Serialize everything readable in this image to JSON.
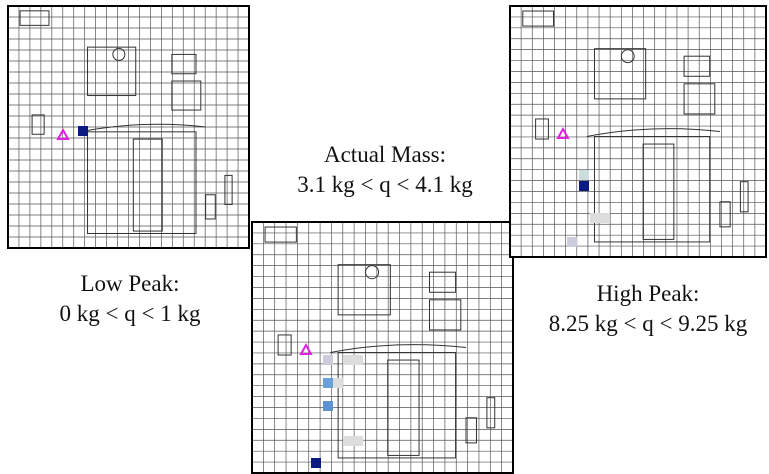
{
  "panels": [
    {
      "title": "Low Peak:",
      "range": "0 kg < q < 1 kg"
    },
    {
      "title": "Actual Mass:",
      "range": "3.1 kg < q < 4.1 kg"
    },
    {
      "title": "High Peak:",
      "range": "8.25 kg < q < 9.25 kg"
    }
  ]
}
